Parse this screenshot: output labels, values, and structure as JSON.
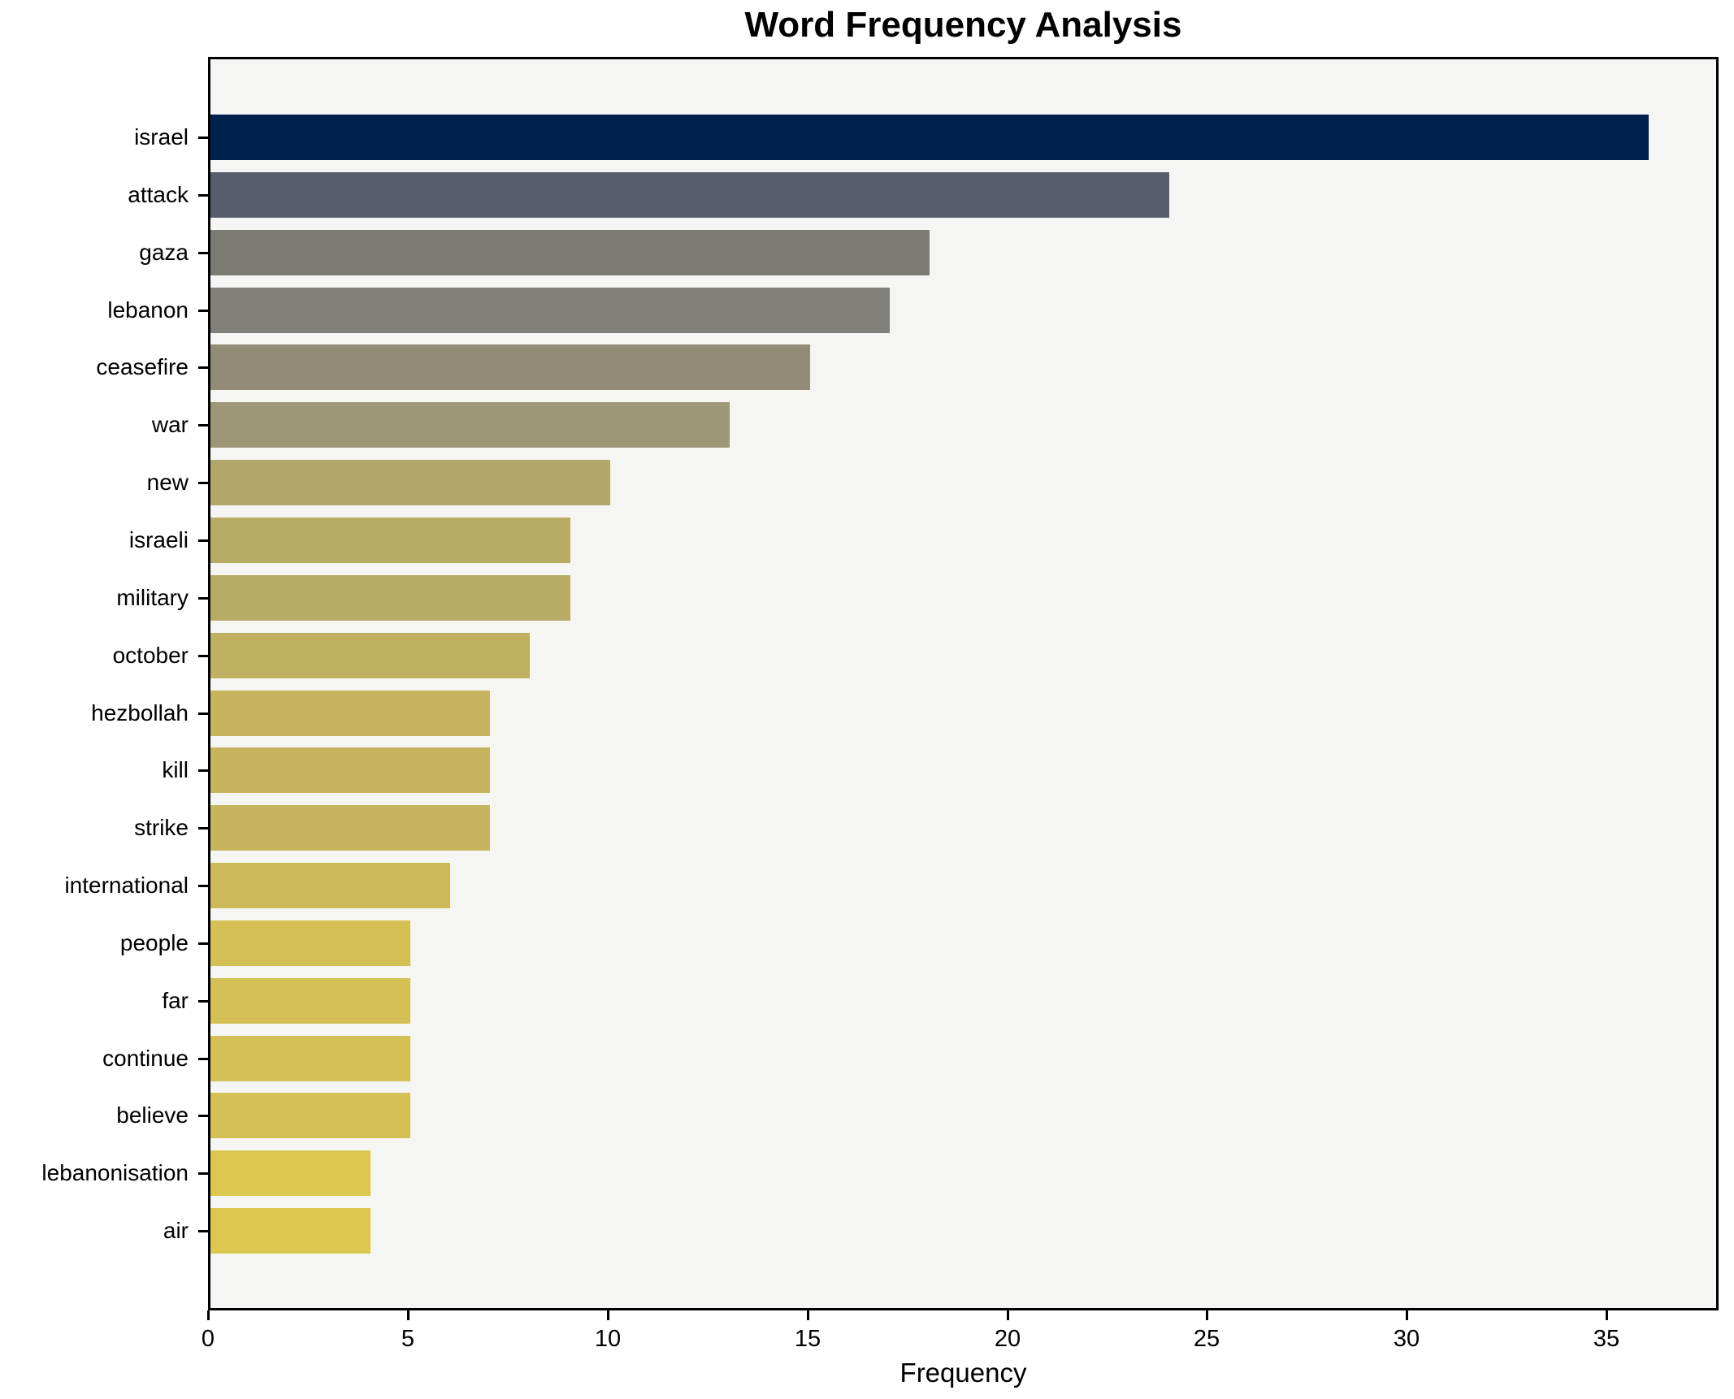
{
  "title": "Word Frequency Analysis",
  "chart_data": {
    "type": "bar",
    "orientation": "horizontal",
    "title": "Word Frequency Analysis",
    "xlabel": "Frequency",
    "ylabel": "",
    "categories": [
      "israel",
      "attack",
      "gaza",
      "lebanon",
      "ceasefire",
      "war",
      "new",
      "israeli",
      "military",
      "october",
      "hezbollah",
      "kill",
      "strike",
      "international",
      "people",
      "far",
      "continue",
      "believe",
      "lebanonisation",
      "air"
    ],
    "values": [
      36,
      24,
      18,
      17,
      15,
      13,
      10,
      9,
      9,
      8,
      7,
      7,
      7,
      6,
      5,
      5,
      5,
      5,
      4,
      4
    ],
    "bar_colors": [
      "#00204d",
      "#575d6d",
      "#7b7b73",
      "#82807a",
      "#918b78",
      "#9d9677",
      "#b2a66b",
      "#b8ab66",
      "#b8ab66",
      "#c0b061",
      "#c6b45e",
      "#c6b45e",
      "#c6b45e",
      "#ccba5a",
      "#d4c055",
      "#d4c055",
      "#d4c055",
      "#d4c055",
      "#dcc851",
      "#dcc851"
    ],
    "xticks": [
      0,
      5,
      10,
      15,
      20,
      25,
      30,
      35
    ],
    "xlim": [
      0,
      37.8
    ],
    "grid": false,
    "legend_position": "none",
    "plot_background": "#f5f5f4",
    "figure_background": "#ffffff",
    "spine_color": "#000000",
    "bar_height_fraction": 0.79
  }
}
